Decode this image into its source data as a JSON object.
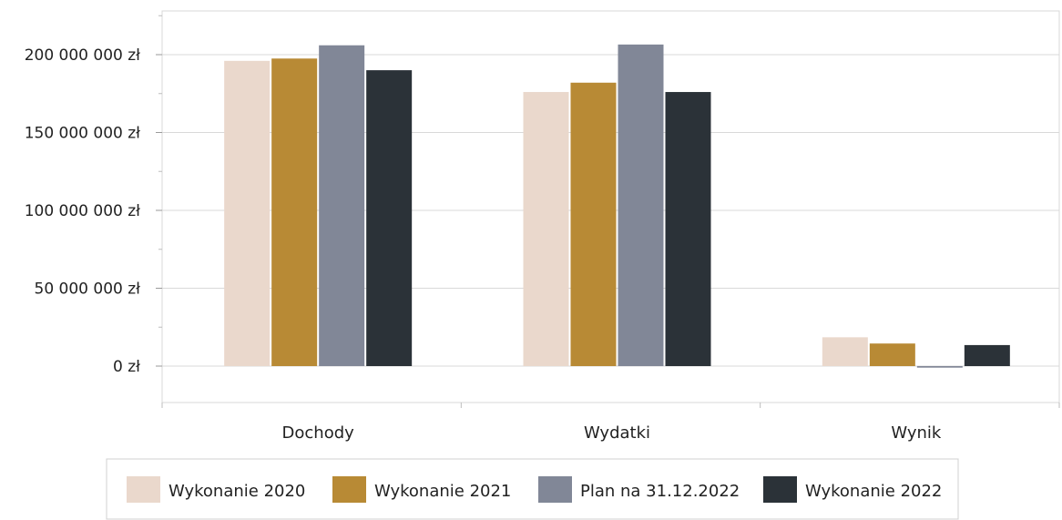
{
  "chart_data": {
    "type": "bar",
    "title": "",
    "xlabel": "",
    "ylabel": "",
    "categories": [
      "Dochody",
      "Wydatki",
      "Wynik"
    ],
    "series": [
      {
        "name": "Wykonanie 2020",
        "color": "#ead8cc",
        "values": [
          196000000,
          176000000,
          18500000
        ]
      },
      {
        "name": "Wykonanie 2021",
        "color": "#b88a35",
        "values": [
          197500000,
          182000000,
          14500000
        ]
      },
      {
        "name": "Plan na 31.12.2022",
        "color": "#818797",
        "values": [
          206000000,
          206500000,
          -1000000
        ]
      },
      {
        "name": "Wykonanie 2022",
        "color": "#2b3238",
        "values": [
          190000000,
          176000000,
          13500000
        ]
      }
    ],
    "ylim": [
      -20000000,
      230000000
    ],
    "yticks": [
      {
        "value": 0,
        "label": "0 zł"
      },
      {
        "value": 50000000,
        "label": "50 000 000 zł"
      },
      {
        "value": 100000000,
        "label": "100 000 000 zł"
      },
      {
        "value": 150000000,
        "label": "150 000 000 zł"
      },
      {
        "value": 200000000,
        "label": "200 000 000 zł"
      }
    ],
    "grid": true,
    "legend_position": "bottom"
  }
}
